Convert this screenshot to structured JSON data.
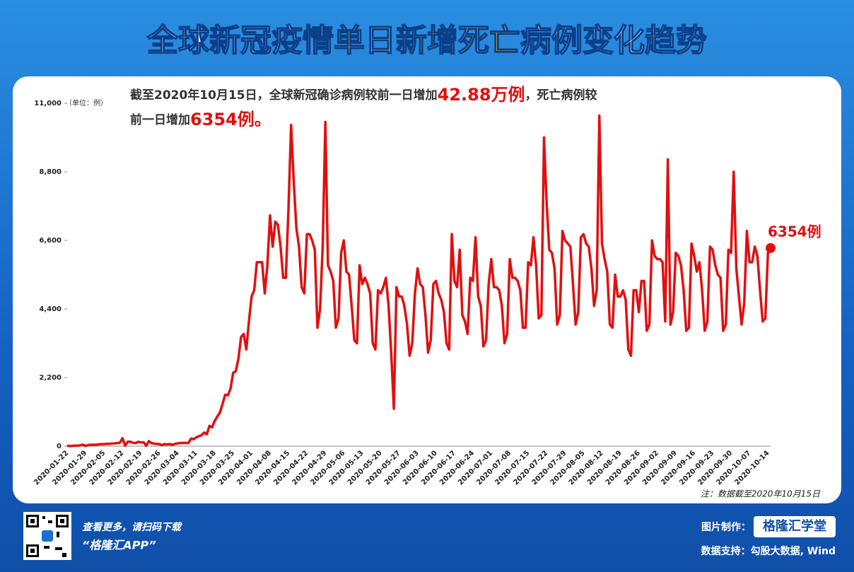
{
  "chart_data": {
    "type": "line",
    "title_parts": [
      "全球新冠疫情",
      "单日新增死亡",
      "病例变化趋势"
    ],
    "summary": [
      "截至2020年10月15日，全球新冠确诊病例较前一日增加",
      "42.88万例",
      "，死亡病例较",
      "前一日增加",
      "6354例。"
    ],
    "y_unit": "（单位：例）",
    "annotation": "6354例",
    "note": "注：数据截至2020年10月15日",
    "categories": [
      "2020-01-22",
      null,
      null,
      null,
      null,
      null,
      null,
      "2020-01-29",
      null,
      null,
      null,
      null,
      null,
      null,
      "2020-02-05",
      null,
      null,
      null,
      null,
      null,
      null,
      "2020-02-12",
      null,
      null,
      null,
      null,
      null,
      null,
      "2020-02-19",
      null,
      null,
      null,
      null,
      null,
      null,
      "2020-02-26",
      null,
      null,
      null,
      null,
      null,
      null,
      "2020-03-04",
      null,
      null,
      null,
      null,
      null,
      null,
      "2020-03-11",
      null,
      null,
      null,
      null,
      null,
      null,
      "2020-03-18",
      null,
      null,
      null,
      null,
      null,
      null,
      "2020-03-25",
      null,
      null,
      null,
      null,
      null,
      null,
      "2020-04-01",
      null,
      null,
      null,
      null,
      null,
      null,
      "2020-04-08",
      null,
      null,
      null,
      null,
      null,
      null,
      "2020-04-15",
      null,
      null,
      null,
      null,
      null,
      null,
      "2020-04-22",
      null,
      null,
      null,
      null,
      null,
      null,
      "2020-04-29",
      null,
      null,
      null,
      null,
      null,
      null,
      "2020-05-06",
      null,
      null,
      null,
      null,
      null,
      null,
      "2020-05-13",
      null,
      null,
      null,
      null,
      null,
      null,
      "2020-05-20",
      null,
      null,
      null,
      null,
      null,
      null,
      "2020-05-27",
      null,
      null,
      null,
      null,
      null,
      null,
      "2020-06-03",
      null,
      null,
      null,
      null,
      null,
      null,
      "2020-06-10",
      null,
      null,
      null,
      null,
      null,
      null,
      "2020-06-17",
      null,
      null,
      null,
      null,
      null,
      null,
      "2020-06-24",
      null,
      null,
      null,
      null,
      null,
      null,
      "2020-07-01",
      null,
      null,
      null,
      null,
      null,
      null,
      "2020-07-08",
      null,
      null,
      null,
      null,
      null,
      null,
      "2020-07-15",
      null,
      null,
      null,
      null,
      null,
      null,
      "2020-07-22",
      null,
      null,
      null,
      null,
      null,
      null,
      "2020-07-29",
      null,
      null,
      null,
      null,
      null,
      null,
      "2020-08-05",
      null,
      null,
      null,
      null,
      null,
      null,
      "2020-08-12",
      null,
      null,
      null,
      null,
      null,
      null,
      "2020-08-19",
      null,
      null,
      null,
      null,
      null,
      null,
      "2020-08-26",
      null,
      null,
      null,
      null,
      null,
      null,
      "2020-09-02",
      null,
      null,
      null,
      null,
      null,
      null,
      "2020-09-09",
      null,
      null,
      null,
      null,
      null,
      null,
      "2020-09-16",
      null,
      null,
      null,
      null,
      null,
      null,
      "2020-09-23",
      null,
      null,
      null,
      null,
      null,
      null,
      "2020-09-30",
      null,
      null,
      null,
      null,
      null,
      null,
      "2020-10-07",
      null,
      null,
      null,
      null,
      null,
      null,
      "2020-10-14",
      null
    ],
    "values": [
      17,
      1,
      8,
      16,
      14,
      26,
      49,
      2,
      38,
      42,
      46,
      45,
      57,
      64,
      66,
      73,
      73,
      86,
      89,
      97,
      108,
      254,
      13,
      143,
      142,
      105,
      98,
      139,
      115,
      125,
      11,
      162,
      99,
      81,
      71,
      64,
      37,
      63,
      57,
      65,
      47,
      73,
      88,
      103,
      103,
      104,
      97,
      242,
      222,
      280,
      321,
      350,
      436,
      378,
      650,
      606,
      810,
      950,
      1080,
      1360,
      1650,
      1630,
      1840,
      2350,
      2400,
      2800,
      3500,
      3600,
      3100,
      4000,
      4800,
      5000,
      5900,
      5900,
      5900,
      4900,
      5800,
      7400,
      6400,
      7200,
      7100,
      6400,
      5400,
      5400,
      7600,
      10300,
      8500,
      7000,
      6400,
      5100,
      4900,
      6800,
      6800,
      6600,
      6300,
      3800,
      4400,
      6400,
      10400,
      5800,
      5600,
      5300,
      3800,
      4100,
      6200,
      6600,
      5600,
      5500,
      4500,
      3400,
      3300,
      5800,
      5200,
      5400,
      5200,
      4900,
      3300,
      3100,
      5000,
      4900,
      5100,
      5400,
      4500,
      3000,
      1200,
      5100,
      4800,
      4800,
      4500,
      3900,
      2900,
      3300,
      4900,
      5700,
      5200,
      5100,
      4200,
      3000,
      3400,
      5200,
      5300,
      4900,
      4700,
      4300,
      3300,
      3100,
      6800,
      5300,
      5100,
      6300,
      4200,
      4000,
      3600,
      5400,
      5300,
      6700,
      4800,
      4500,
      3200,
      3400,
      5200,
      6000,
      5100,
      5100,
      5000,
      4500,
      3300,
      3600,
      6000,
      5400,
      5400,
      5300,
      5000,
      3800,
      3800,
      5900,
      5800,
      6700,
      5800,
      4100,
      4200,
      9900,
      7800,
      6300,
      6200,
      5700,
      3900,
      4200,
      6900,
      6600,
      6500,
      6400,
      5200,
      3900,
      4300,
      6700,
      6800,
      6500,
      6400,
      5700,
      4500,
      5000,
      10600,
      6500,
      6000,
      5600,
      3900,
      3800,
      5500,
      4800,
      4800,
      5000,
      4700,
      3100,
      2900,
      5000,
      5000,
      4300,
      5300,
      5300,
      3700,
      3900,
      6600,
      6100,
      6000,
      6000,
      5900,
      4000,
      9200,
      3900,
      4300,
      6200,
      6100,
      5800,
      5000,
      3700,
      3800,
      6500,
      6100,
      5600,
      5900,
      5000,
      3700,
      4000,
      6400,
      6300,
      5800,
      5500,
      5400,
      3700,
      3900,
      6300,
      6200,
      8800,
      5700,
      4800,
      3900,
      4600,
      6900,
      5900,
      5900,
      6400,
      6100,
      5000,
      4000,
      4100,
      6200,
      6354
    ],
    "color": "#e01010",
    "ylim": [
      0,
      11000
    ],
    "yticks": [
      0,
      {
        "value": 2200,
        "label": "2,200"
      },
      {
        "value": 4400,
        "label": "4,400"
      },
      {
        "value": 6600,
        "label": "6,600"
      },
      {
        "value": 8800,
        "label": "8,800"
      },
      {
        "value": 11000,
        "label": "11,000"
      }
    ]
  },
  "footer": {
    "scan": "查看更多，请扫码下载",
    "app": "“格隆汇APP”",
    "made_by": "图片制作：",
    "brand": "格隆汇学堂",
    "source": "数据支持：勾股大数据, Wind"
  }
}
